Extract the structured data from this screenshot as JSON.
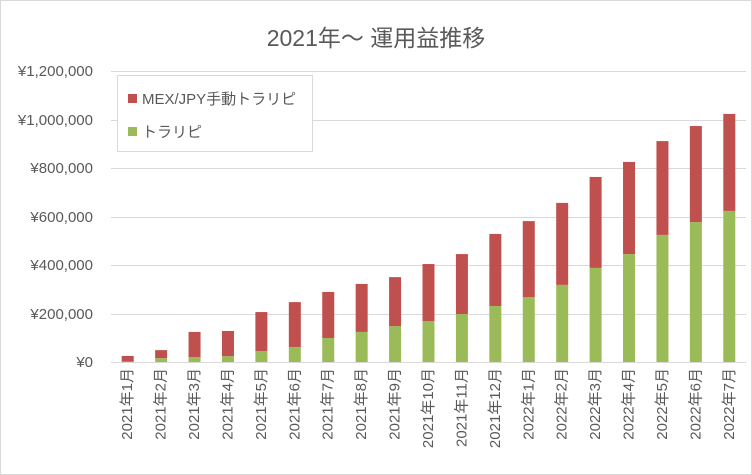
{
  "chart_data": {
    "type": "bar",
    "stacked": true,
    "title": "2021年～ 運用益推移",
    "xlabel": "",
    "ylabel": "",
    "categories": [
      "2021年1月",
      "2021年2月",
      "2021年3月",
      "2021年4月",
      "2021年5月",
      "2021年6月",
      "2021年7月",
      "2021年8月",
      "2021年9月",
      "2021年10月",
      "2021年11月",
      "2021年12月",
      "2022年1月",
      "2022年2月",
      "2022年3月",
      "2022年4月",
      "2022年5月",
      "2022年6月",
      "2022年7月"
    ],
    "series": [
      {
        "name": "トラリピ",
        "color": "#9BBB59",
        "values": [
          2000,
          16000,
          20000,
          24000,
          45000,
          62000,
          99000,
          124000,
          148000,
          169000,
          198000,
          231000,
          268000,
          318000,
          388000,
          445000,
          524000,
          577000,
          623000
        ]
      },
      {
        "name": "MEX/JPY手動トラリピ",
        "color": "#C0504D",
        "values": [
          23000,
          33000,
          104000,
          104000,
          161000,
          185000,
          190000,
          198000,
          202000,
          235000,
          247000,
          297000,
          313000,
          338000,
          375000,
          380000,
          387000,
          396000,
          400000
        ]
      }
    ],
    "ylim": [
      0,
      1200000
    ],
    "yticks": [
      0,
      200000,
      400000,
      600000,
      800000,
      1000000,
      1200000
    ],
    "ytick_labels": [
      "¥0",
      "¥200,000",
      "¥400,000",
      "¥600,000",
      "¥800,000",
      "¥1,000,000",
      "¥1,200,000"
    ],
    "grid": true,
    "legend_position": "top-left"
  }
}
